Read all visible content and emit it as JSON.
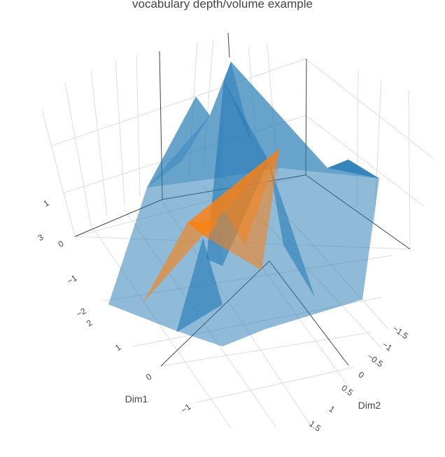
{
  "chart_data": {
    "type": "3d-mesh",
    "title": "vocabulary depth/volume example",
    "axes": {
      "x": {
        "label": "Dim1",
        "ticks": [
          "2",
          "1",
          "0",
          "−1"
        ]
      },
      "y": {
        "label": "Dim2",
        "ticks": [
          "−1.5",
          "−1",
          "−0.5",
          "0",
          "0.5",
          "1",
          "1.5"
        ]
      },
      "z": {
        "label": "",
        "ticks": [
          "1",
          "0",
          "−1",
          "−2",
          "3"
        ]
      }
    },
    "series": [
      {
        "color": "#1f77b4",
        "opacity": 0.5
      },
      {
        "color": "#ff7f0e",
        "opacity": 0.6
      }
    ],
    "grid": true,
    "legend": "none"
  }
}
